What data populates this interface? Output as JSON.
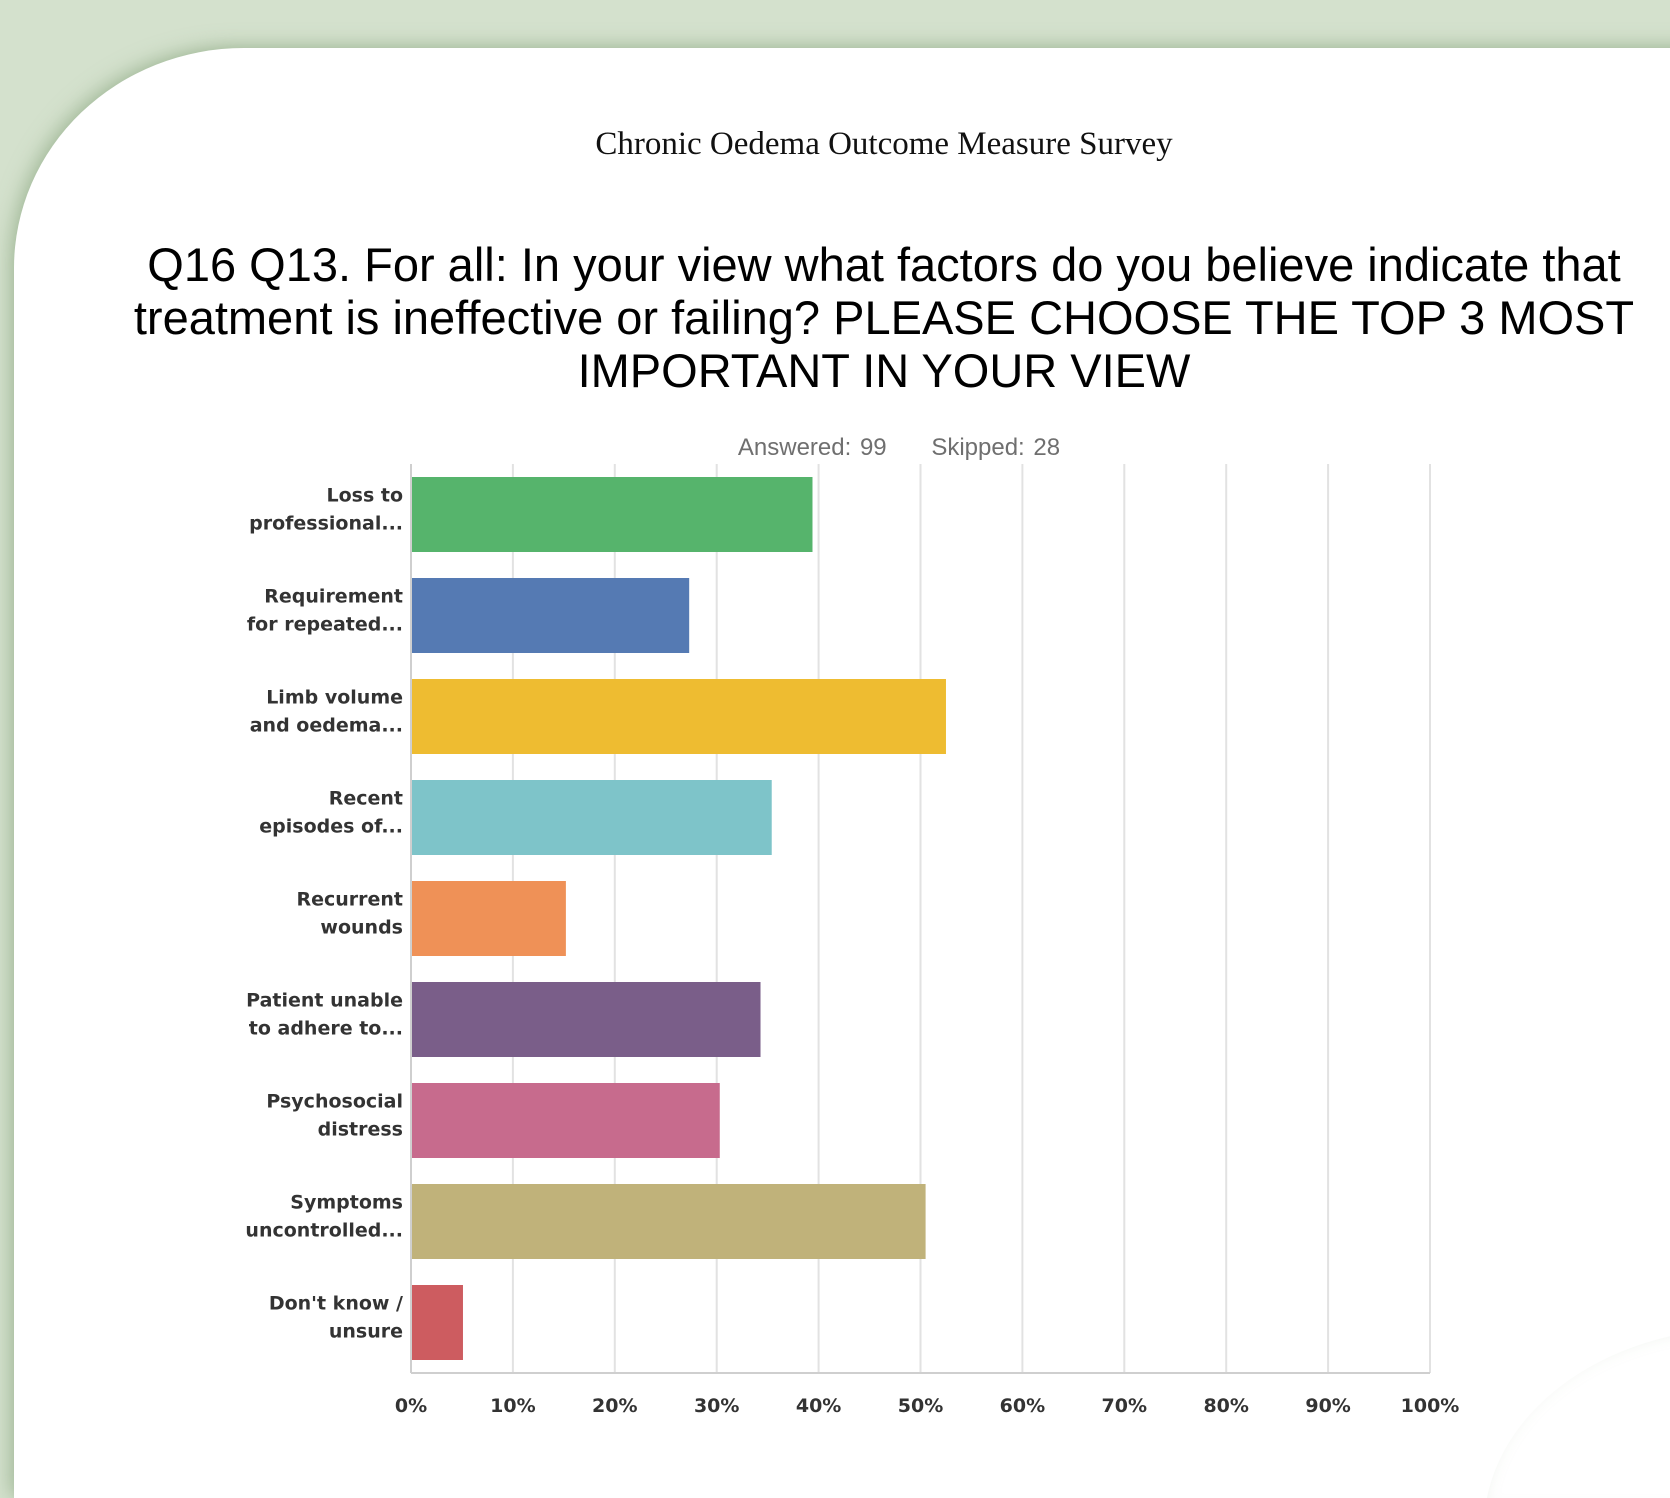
{
  "page": {
    "survey_title": "Chronic Oedema Outcome Measure Survey",
    "question": "Q16 Q13. For all: In your view what factors do you believe indicate that treatment is ineffective or failing? PLEASE CHOOSE THE TOP 3 MOST IMPORTANT IN YOUR VIEW",
    "answered": "Answered: 99",
    "skipped": "Skipped: 28"
  },
  "chart_data": {
    "type": "bar",
    "orientation": "horizontal",
    "categories": [
      [
        "Loss to",
        "professional..."
      ],
      [
        "Requirement",
        "for repeated..."
      ],
      [
        "Limb volume",
        "and oedema..."
      ],
      [
        "Recent",
        "episodes of..."
      ],
      [
        "Recurrent",
        "wounds"
      ],
      [
        "Patient unable",
        "to adhere to..."
      ],
      [
        "Psychosocial",
        "distress"
      ],
      [
        "Symptoms",
        "uncontrolled..."
      ],
      [
        "Don't know /",
        "unsure"
      ]
    ],
    "values": [
      39.4,
      27.3,
      52.5,
      35.4,
      15.2,
      34.3,
      30.3,
      50.5,
      5.1
    ],
    "colors": [
      "#56b46c",
      "#557ab3",
      "#eebc31",
      "#7ec4c9",
      "#ef9157",
      "#7a5e89",
      "#c76b8d",
      "#c0b27a",
      "#cd5c60"
    ],
    "xlim": [
      0,
      100
    ],
    "xticks": [
      "0%",
      "10%",
      "20%",
      "30%",
      "40%",
      "50%",
      "60%",
      "70%",
      "80%",
      "90%",
      "100%"
    ],
    "grid": true,
    "grid_color": "#e2e2e2"
  }
}
